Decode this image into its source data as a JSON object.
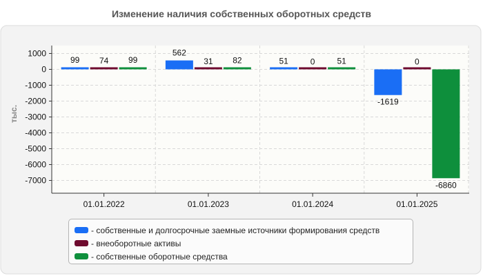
{
  "title": "Изменение наличия собственных оборотных средств",
  "chart_data": {
    "type": "bar",
    "title": "Изменение наличия собственных оборотных средств",
    "ylabel": "тыс.",
    "xlabel": "",
    "ylim": [
      -8000,
      1500
    ],
    "yticks": [
      1000,
      0,
      -1000,
      -2000,
      -3000,
      -4000,
      -5000,
      -6000,
      -7000
    ],
    "categories": [
      "01.01.2022",
      "01.01.2023",
      "01.01.2024",
      "01.01.2025"
    ],
    "grid": true,
    "legend_position": "bottom",
    "series": [
      {
        "name": "- собственные и долгосрочные заемные источники формирования средств",
        "color": "#1a6ef5",
        "values": [
          99,
          562,
          51,
          -1619
        ]
      },
      {
        "name": "- внеоборотные активы",
        "color": "#6e0a2e",
        "values": [
          74,
          31,
          0,
          0
        ]
      },
      {
        "name": "- собственные оборотные средства",
        "color": "#0e8f3c",
        "values": [
          99,
          82,
          51,
          -6860
        ]
      }
    ]
  }
}
